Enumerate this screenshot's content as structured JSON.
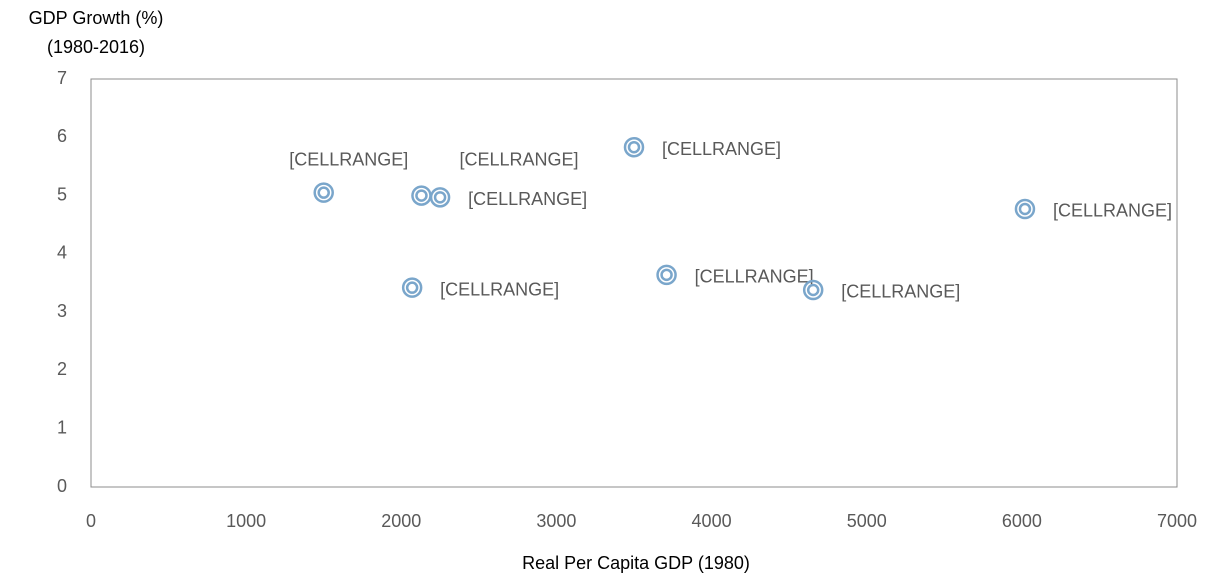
{
  "chart_data": {
    "type": "scatter",
    "ylabel": [
      "GDP Growth (%)",
      "(1980-2016)"
    ],
    "xlabel": "Real Per Capita GDP (1980)",
    "series": [
      {
        "color": "#7aa6cb",
        "x": [
          1500,
          2130,
          2250,
          2070,
          3500,
          3710,
          4655,
          6020
        ],
        "values": [
          5.05,
          5.0,
          4.97,
          3.42,
          5.83,
          3.64,
          3.38,
          4.77
        ],
        "point_labels": [
          "[CELLRANGE]",
          "[CELLRANGE]",
          "[CELLRANGE]",
          "[CELLRANGE]",
          "[CELLRANGE]",
          "[CELLRANGE]",
          "[CELLRANGE]",
          "[CELLRANGE]"
        ]
      }
    ],
    "xlim": [
      0,
      7000
    ],
    "xticks": [
      0,
      1000,
      2000,
      3000,
      4000,
      5000,
      6000,
      7000
    ],
    "ylim": [
      0,
      7
    ],
    "yticks": [
      0,
      1,
      2,
      3,
      4,
      5,
      6,
      7
    ],
    "grid": false
  }
}
